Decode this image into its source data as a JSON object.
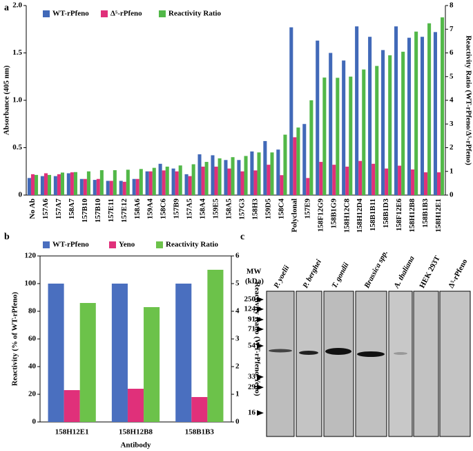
{
  "chart_data": [
    {
      "type": "bar",
      "label": "a",
      "y_label": "Absorbance (405 nm)",
      "y2_label": "Reactivity Ratio (WT-rPfeno/Δ⁵-rPfeno)",
      "categories": [
        "No Ab",
        "157A6",
        "157A7",
        "158A7",
        "157B10",
        "157B10",
        "157E11",
        "157E12",
        "158A6",
        "159A4",
        "158C6",
        "157B9",
        "157A5",
        "158A4",
        "159E5",
        "158A5",
        "157G3",
        "158H3",
        "159D5",
        "158C4",
        "Polyclonal",
        "157E9",
        "158F12G9",
        "158B1G9",
        "158H12C8",
        "158H12D4",
        "158B1B11",
        "158B1D3",
        "158F12E6",
        "158H12B8",
        "158B1B3",
        "158H12E1"
      ],
      "series": [
        {
          "name": "WT-rPfeno",
          "color": "#4169b8",
          "values": [
            0.18,
            0.2,
            0.2,
            0.23,
            0.17,
            0.16,
            0.15,
            0.15,
            0.17,
            0.25,
            0.33,
            0.28,
            0.22,
            0.43,
            0.42,
            0.37,
            0.37,
            0.46,
            0.57,
            0.48,
            1.77,
            0.75,
            1.63,
            1.5,
            1.42,
            1.78,
            1.67,
            1.53,
            1.78,
            1.66,
            1.67,
            1.72
          ]
        },
        {
          "name": "Δ⁵-rPfeno",
          "color": "#e0307a",
          "values": [
            0.22,
            0.23,
            0.22,
            0.24,
            0.17,
            0.17,
            0.15,
            0.14,
            0.17,
            0.25,
            0.26,
            0.25,
            0.2,
            0.3,
            0.3,
            0.28,
            0.25,
            0.26,
            0.32,
            0.21,
            0.61,
            0.18,
            0.35,
            0.32,
            0.3,
            0.36,
            0.33,
            0.28,
            0.31,
            0.27,
            0.24,
            0.24
          ]
        },
        {
          "name": "Reactivity Ratio",
          "color": "#52b848",
          "axis": "y2",
          "values": [
            0.85,
            0.85,
            0.95,
            0.97,
            1.0,
            1.05,
            1.05,
            1.07,
            1.1,
            1.15,
            1.2,
            1.25,
            1.3,
            1.4,
            1.55,
            1.6,
            1.65,
            1.8,
            1.8,
            2.55,
            2.85,
            4.0,
            4.96,
            4.95,
            5.0,
            5.3,
            5.45,
            5.9,
            6.05,
            6.9,
            7.25,
            7.5
          ]
        }
      ],
      "ylim": [
        0,
        2
      ],
      "yticks": [
        0,
        0.5,
        {
          "value": 1,
          "label": "1.0"
        },
        1.5,
        {
          "value": 2,
          "label": "2.0"
        }
      ],
      "y2lim": [
        0,
        8
      ],
      "y2ticks": [
        0,
        1,
        2,
        3,
        4,
        5,
        6,
        7,
        8
      ]
    },
    {
      "type": "bar",
      "label": "b",
      "y_label": "Reactivity (% of WT-rPfeno)",
      "y2_label": "Reactivity Ratio (WT-rPfeno/Yeno)",
      "x_label": "Antibody",
      "categories": [
        "158H12E1",
        "158H12B8",
        "158B1B3"
      ],
      "series": [
        {
          "name": "WT-rPfeno",
          "color": "#4a6fbf",
          "values": [
            100,
            100,
            100
          ]
        },
        {
          "name": "Yeno",
          "color": "#e0307a",
          "values": [
            23,
            24,
            18
          ]
        },
        {
          "name": "Reactivity Ratio",
          "color": "#6cc24a",
          "axis": "y2",
          "values": [
            4.3,
            4.15,
            5.5
          ]
        }
      ],
      "ylim": [
        0,
        120
      ],
      "yticks": [
        0,
        20,
        40,
        60,
        80,
        100,
        120
      ],
      "y2lim": [
        0,
        6
      ],
      "y2ticks": [
        0,
        1,
        2,
        3,
        4,
        5,
        6
      ]
    }
  ],
  "blot": {
    "label": "c",
    "mw_title": "MW",
    "mw_unit": "(kDa)",
    "markers": [
      "250",
      "124",
      "91",
      "71",
      "54",
      "33",
      "29",
      "16"
    ],
    "lanes": [
      "P. yoelii",
      "P. berghei",
      "T. gondii",
      "Brassica spp.",
      "A. thaliana",
      "HEK 293T",
      "Δ⁵-rPfeno"
    ]
  }
}
